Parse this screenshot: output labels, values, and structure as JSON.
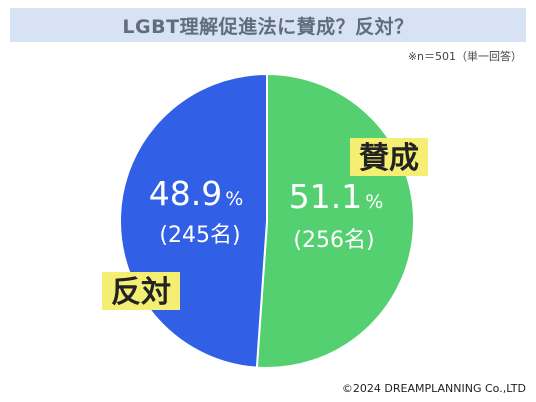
{
  "header": {
    "title": "LGBT理解促進法に賛成？反対？",
    "sample_note": "※n＝501（単一回答）"
  },
  "footer": {
    "credit": "©2024 DREAMPLANNING Co.,LTD"
  },
  "colors": {
    "agree": "#54d070",
    "oppose": "#3160e6",
    "label_highlight": "#f4ef72"
  },
  "chart_data": {
    "type": "pie",
    "title": "LGBT理解促進法に賛成？反対？",
    "slices": [
      {
        "name": "賛成",
        "value": 51.1,
        "count_label": "(256名)",
        "color": "#54d070"
      },
      {
        "name": "反対",
        "value": 48.9,
        "count_label": "(245名)",
        "color": "#3160e6"
      }
    ],
    "unit": "%"
  }
}
